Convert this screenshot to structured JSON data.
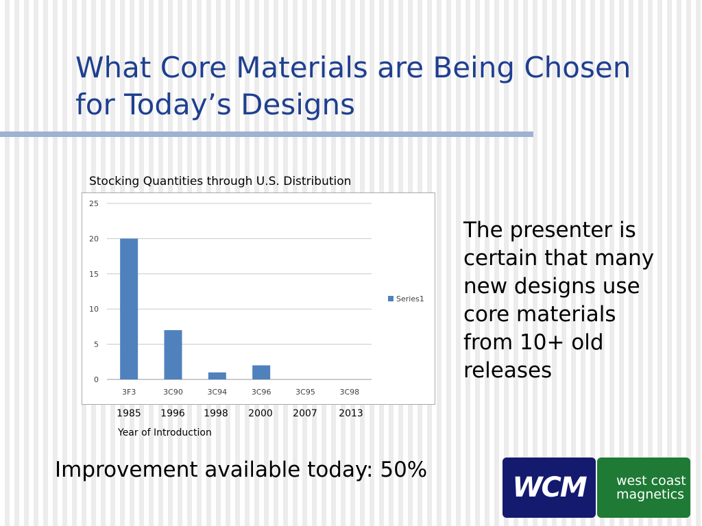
{
  "slide": {
    "title_lines": [
      "What Core Materials are Being Chosen",
      "for Today’s Designs"
    ],
    "body_text_lines": [
      "The presenter is",
      "certain that many",
      "new designs use",
      "core materials",
      "from 10+ old",
      "releases"
    ],
    "improvement_text": "Improvement available today: 50%",
    "accent_color": "#1f3f8f",
    "rule_color": "#9db3d1"
  },
  "logos": {
    "monogram": "WCM",
    "name_lines": [
      "west coast",
      "magnetics"
    ],
    "monogram_bg": "#141a6e",
    "name_bg": "#1e7a34"
  },
  "chart_data": {
    "type": "bar",
    "title": "Stocking Quantities through U.S. Distribution",
    "categories": [
      "3F3",
      "3C90",
      "3C94",
      "3C96",
      "3C95",
      "3C98"
    ],
    "years": [
      "1985",
      "1996",
      "1998",
      "2000",
      "2007",
      "2013"
    ],
    "year_axis_title": "Year of Introduction",
    "series": [
      {
        "name": "Series1",
        "values": [
          20,
          7,
          1,
          2,
          0,
          0
        ]
      }
    ],
    "ylim": [
      0,
      25
    ],
    "yticks": [
      0,
      5,
      10,
      15,
      20,
      25
    ],
    "grid": true,
    "legend_position": "right",
    "bar_color": "#4f81bd"
  }
}
